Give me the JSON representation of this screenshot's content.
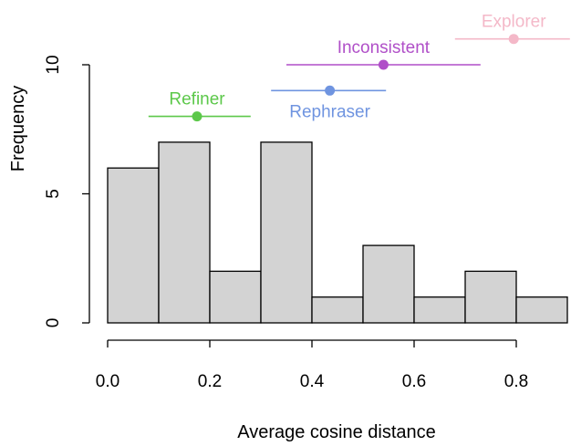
{
  "chart_data": {
    "type": "bar",
    "subtype": "histogram",
    "xlabel": "Average cosine distance",
    "ylabel": "Frequency",
    "xlim": [
      0.0,
      0.9
    ],
    "ylim": [
      0,
      10
    ],
    "x_ticks": [
      0.0,
      0.2,
      0.4,
      0.6,
      0.8
    ],
    "x_tick_labels": [
      "0.0",
      "0.2",
      "0.4",
      "0.6",
      "0.8"
    ],
    "y_ticks": [
      0,
      5,
      10
    ],
    "y_tick_labels": [
      "0",
      "5",
      "10"
    ],
    "bin_edges": [
      0.0,
      0.1,
      0.2,
      0.3,
      0.4,
      0.5,
      0.6,
      0.7,
      0.8,
      0.9
    ],
    "values": [
      6,
      7,
      2,
      7,
      1,
      3,
      1,
      2,
      1
    ],
    "bar_color": "#d3d3d3",
    "grid": false,
    "annotations": [
      {
        "label": "Refiner",
        "mean": 0.175,
        "low": 0.08,
        "high": 0.28,
        "y": 8,
        "color": "#5cc84a",
        "label_pos": "above"
      },
      {
        "label": "Rephraser",
        "mean": 0.435,
        "low": 0.32,
        "high": 0.545,
        "y": 9,
        "color": "#6f94e0",
        "label_pos": "below"
      },
      {
        "label": "Inconsistent",
        "mean": 0.54,
        "low": 0.35,
        "high": 0.73,
        "y": 10,
        "color": "#b04fc8",
        "label_pos": "above"
      },
      {
        "label": "Explorer",
        "mean": 0.795,
        "low": 0.68,
        "high": 0.905,
        "y": 11,
        "color": "#f4b8c8",
        "label_pos": "above"
      }
    ]
  }
}
